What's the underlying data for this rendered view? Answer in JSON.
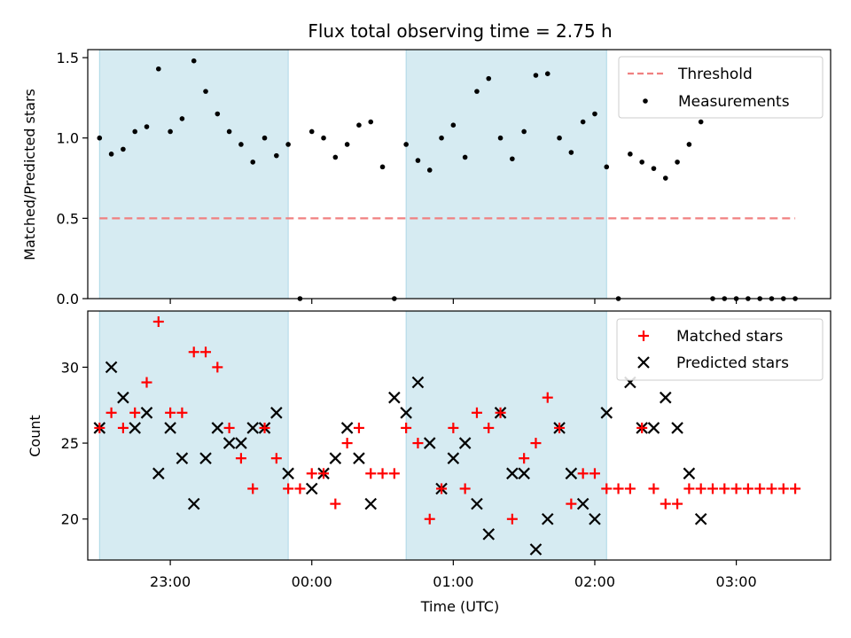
{
  "chart_data": {
    "type": "scatter",
    "title": "Flux total observing time = 2.75 h",
    "xlabel": "Time (UTC)",
    "x_tick_labels": [
      "23:00",
      "00:00",
      "01:00",
      "02:00",
      "03:00"
    ],
    "x_ticks": [
      "2000-01-01T23:00",
      "2000-01-02T00:00",
      "2000-01-02T01:00",
      "2000-01-02T02:00",
      "2000-01-02T03:00"
    ],
    "x_range": [
      "2000-01-01T22:25",
      "2000-01-02T03:40"
    ],
    "shaded_intervals": [
      [
        "2000-01-01T22:30",
        "2000-01-01T23:50"
      ],
      [
        "2000-01-02T00:40",
        "2000-01-02T02:05"
      ]
    ],
    "times": [
      "2000-01-01T22:30",
      "2000-01-01T22:35",
      "2000-01-01T22:40",
      "2000-01-01T22:45",
      "2000-01-01T22:50",
      "2000-01-01T22:55",
      "2000-01-01T23:00",
      "2000-01-01T23:05",
      "2000-01-01T23:10",
      "2000-01-01T23:15",
      "2000-01-01T23:20",
      "2000-01-01T23:25",
      "2000-01-01T23:30",
      "2000-01-01T23:35",
      "2000-01-01T23:40",
      "2000-01-01T23:45",
      "2000-01-01T23:50",
      "2000-01-01T23:55",
      "2000-01-02T00:00",
      "2000-01-02T00:05",
      "2000-01-02T00:10",
      "2000-01-02T00:15",
      "2000-01-02T00:20",
      "2000-01-02T00:25",
      "2000-01-02T00:30",
      "2000-01-02T00:35",
      "2000-01-02T00:40",
      "2000-01-02T00:45",
      "2000-01-02T00:50",
      "2000-01-02T00:55",
      "2000-01-02T01:00",
      "2000-01-02T01:05",
      "2000-01-02T01:10",
      "2000-01-02T01:15",
      "2000-01-02T01:20",
      "2000-01-02T01:25",
      "2000-01-02T01:30",
      "2000-01-02T01:35",
      "2000-01-02T01:40",
      "2000-01-02T01:45",
      "2000-01-02T01:50",
      "2000-01-02T01:55",
      "2000-01-02T02:00",
      "2000-01-02T02:05",
      "2000-01-02T02:10",
      "2000-01-02T02:15",
      "2000-01-02T02:20",
      "2000-01-02T02:25",
      "2000-01-02T02:30",
      "2000-01-02T02:35",
      "2000-01-02T02:40",
      "2000-01-02T02:45",
      "2000-01-02T02:50",
      "2000-01-02T02:55",
      "2000-01-02T03:00",
      "2000-01-02T03:05",
      "2000-01-02T03:10",
      "2000-01-02T03:15",
      "2000-01-02T03:20",
      "2000-01-02T03:25"
    ],
    "top_panel": {
      "ylabel": "Matched/Predicted stars",
      "ylim": [
        0,
        1.55
      ],
      "y_ticks": [
        0.0,
        0.5,
        1.0,
        1.5
      ],
      "y_tick_labels": [
        "0.0",
        "0.5",
        "1.0",
        "1.5"
      ],
      "legend_placement": "upper right",
      "threshold": {
        "name": "Threshold",
        "value": 0.5,
        "x_range": [
          "2000-01-01T22:30",
          "2000-01-02T03:25"
        ],
        "color": "#f08080",
        "style": "dashed"
      },
      "measurements": {
        "name": "Measurements",
        "color": "#000000",
        "values": [
          1.0,
          0.9,
          0.93,
          1.04,
          1.07,
          1.43,
          1.04,
          1.12,
          1.48,
          1.29,
          1.15,
          1.04,
          0.96,
          0.85,
          1.0,
          0.89,
          0.96,
          0.0,
          1.04,
          1.0,
          0.88,
          0.96,
          1.08,
          1.1,
          0.82,
          0.0,
          0.96,
          0.86,
          0.8,
          1.0,
          1.08,
          0.88,
          1.29,
          1.37,
          1.0,
          0.87,
          1.04,
          1.39,
          1.4,
          1.0,
          0.91,
          1.1,
          1.15,
          0.82,
          0.0,
          0.9,
          0.85,
          0.81,
          0.75,
          0.85,
          0.96,
          1.1,
          0.0,
          0.0,
          0.0,
          0.0,
          0.0,
          0.0,
          0.0,
          0.0
        ]
      }
    },
    "bottom_panel": {
      "ylabel": "Count",
      "ylim": [
        17.3,
        33.7
      ],
      "y_ticks": [
        20,
        25,
        30
      ],
      "y_tick_labels": [
        "20",
        "25",
        "30"
      ],
      "legend_placement": "upper right",
      "series": [
        {
          "name": "Matched stars",
          "marker": "plus",
          "color": "#ff0000",
          "values": [
            26,
            27,
            26,
            27,
            29,
            33,
            27,
            27,
            31,
            31,
            30,
            26,
            24,
            22,
            26,
            24,
            22,
            22,
            23,
            23,
            21,
            25,
            26,
            23,
            23,
            23,
            26,
            25,
            20,
            22,
            26,
            22,
            27,
            26,
            27,
            20,
            24,
            25,
            28,
            26,
            21,
            23,
            23,
            22,
            22,
            22,
            26,
            22,
            21,
            21,
            22,
            22,
            22,
            22,
            22,
            22,
            22,
            22,
            22,
            22
          ]
        },
        {
          "name": "Predicted stars",
          "marker": "x",
          "color": "#000000",
          "values": [
            26,
            30,
            28,
            26,
            27,
            23,
            26,
            24,
            21,
            24,
            26,
            25,
            25,
            26,
            26,
            27,
            23,
            null,
            22,
            23,
            24,
            26,
            24,
            21,
            null,
            28,
            27,
            29,
            25,
            22,
            24,
            25,
            21,
            19,
            27,
            23,
            23,
            18,
            20,
            26,
            23,
            21,
            20,
            27,
            null,
            29,
            26,
            26,
            28,
            26,
            23,
            20,
            null,
            null,
            null,
            null,
            null,
            null,
            null,
            null
          ]
        }
      ]
    }
  }
}
